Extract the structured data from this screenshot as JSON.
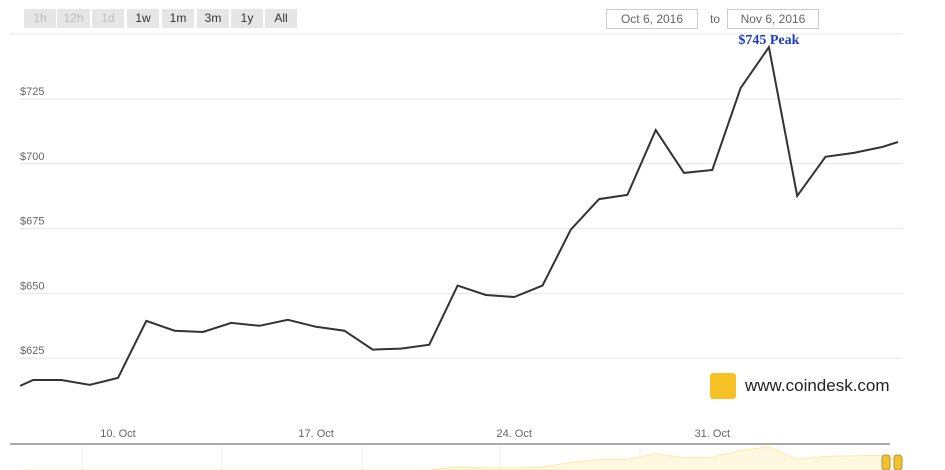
{
  "range_buttons": [
    {
      "label": "1h",
      "enabled": false
    },
    {
      "label": "12h",
      "enabled": false
    },
    {
      "label": "1d",
      "enabled": false
    },
    {
      "label": "1w",
      "enabled": true
    },
    {
      "label": "1m",
      "enabled": true
    },
    {
      "label": "3m",
      "enabled": true
    },
    {
      "label": "1y",
      "enabled": true
    },
    {
      "label": "All",
      "enabled": true
    }
  ],
  "date_from": "Oct 6, 2016",
  "date_to": "Nov 6, 2016",
  "to_label": "to",
  "watermark": "www.coindesk.com",
  "colors": {
    "line": "#333333",
    "peak_label": "#1a3cc8",
    "logo": "#f7c126",
    "navigator": "#fde9a6"
  },
  "chart_data": {
    "type": "line",
    "ylim": [
      606,
      752
    ],
    "yticks": [
      625,
      650,
      675,
      700,
      725
    ],
    "ytick_labels": [
      "$625",
      "$650",
      "$675",
      "$700",
      "$725"
    ],
    "xticks": [
      "2016-10-10",
      "2016-10-17",
      "2016-10-24",
      "2016-10-31"
    ],
    "xtick_labels": [
      "10. Oct",
      "17. Oct",
      "24. Oct",
      "31. Oct"
    ],
    "grid": true,
    "annotation": {
      "label": "$745 Peak",
      "date": "2016-11-02",
      "value": 745
    },
    "x": [
      "2016-10-06T13:00",
      "2016-10-07",
      "2016-10-08",
      "2016-10-09",
      "2016-10-10",
      "2016-10-11",
      "2016-10-12",
      "2016-10-13",
      "2016-10-14",
      "2016-10-15",
      "2016-10-16",
      "2016-10-17",
      "2016-10-18",
      "2016-10-19",
      "2016-10-20",
      "2016-10-21",
      "2016-10-22",
      "2016-10-23",
      "2016-10-24",
      "2016-10-25",
      "2016-10-26",
      "2016-10-27",
      "2016-10-28",
      "2016-10-29",
      "2016-10-30",
      "2016-10-31",
      "2016-11-01",
      "2016-11-02",
      "2016-11-03",
      "2016-11-04",
      "2016-11-05",
      "2016-11-06",
      "2016-11-06T13:30"
    ],
    "values": [
      614.3,
      616.6,
      616.6,
      614.7,
      617.4,
      639.4,
      635.6,
      635.1,
      638.6,
      637.5,
      639.8,
      637.1,
      635.6,
      628.3,
      628.7,
      630.2,
      653.0,
      649.4,
      648.6,
      653.0,
      674.6,
      686.4,
      688.0,
      713.0,
      696.5,
      697.6,
      729.2,
      745,
      687.6,
      702.7,
      704.2,
      706.5,
      708.4
    ]
  }
}
